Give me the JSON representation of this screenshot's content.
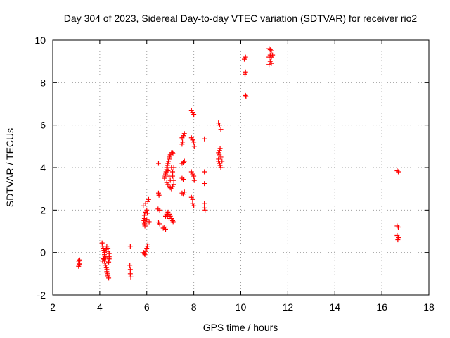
{
  "chart_data": {
    "type": "scatter",
    "title": "Day 304 of 2023, Sidereal Day-to-day VTEC variation (SDTVAR) for receiver rio2",
    "xlabel": "GPS time / hours",
    "ylabel": "SDTVAR / TECUs",
    "xlim": [
      2,
      18
    ],
    "ylim": [
      -2,
      10
    ],
    "xticks": [
      2,
      4,
      6,
      8,
      10,
      12,
      14,
      16,
      18
    ],
    "yticks": [
      -2,
      0,
      2,
      4,
      6,
      8,
      10
    ],
    "xtick_labels": [
      "2",
      "4",
      "6",
      "8",
      "10",
      "12",
      "14",
      "16",
      "18"
    ],
    "ytick_labels": [
      "-2",
      "0",
      "2",
      "4",
      "6",
      "8",
      "10"
    ],
    "grid": true,
    "marker": "+",
    "color": "#ff0000",
    "series": [
      {
        "name": "rio2",
        "points": [
          [
            3.1,
            -0.4
          ],
          [
            3.12,
            -0.5
          ],
          [
            3.15,
            -0.55
          ],
          [
            3.1,
            -0.65
          ],
          [
            3.15,
            -0.35
          ],
          [
            4.1,
            0.45
          ],
          [
            4.12,
            0.3
          ],
          [
            4.15,
            0.2
          ],
          [
            4.18,
            0.1
          ],
          [
            4.2,
            0.0
          ],
          [
            4.2,
            -0.1
          ],
          [
            4.22,
            -0.2
          ],
          [
            4.18,
            -0.3
          ],
          [
            4.2,
            -0.4
          ],
          [
            4.22,
            -0.5
          ],
          [
            4.25,
            -0.6
          ],
          [
            4.28,
            -0.7
          ],
          [
            4.3,
            -0.8
          ],
          [
            4.3,
            -0.9
          ],
          [
            4.32,
            -1.0
          ],
          [
            4.35,
            -1.1
          ],
          [
            4.38,
            -1.2
          ],
          [
            4.3,
            0.3
          ],
          [
            4.35,
            0.2
          ],
          [
            4.35,
            0.05
          ],
          [
            4.4,
            -0.05
          ],
          [
            4.4,
            -0.2
          ],
          [
            4.4,
            -0.3
          ],
          [
            4.38,
            -0.45
          ],
          [
            4.15,
            -0.3
          ],
          [
            4.12,
            -0.4
          ],
          [
            4.28,
            0.15
          ],
          [
            4.25,
            -0.25
          ],
          [
            5.3,
            0.3
          ],
          [
            5.28,
            -0.6
          ],
          [
            5.3,
            -0.8
          ],
          [
            5.3,
            -1.0
          ],
          [
            5.32,
            -1.15
          ],
          [
            5.85,
            1.4
          ],
          [
            5.88,
            1.5
          ],
          [
            5.9,
            1.6
          ],
          [
            5.9,
            1.35
          ],
          [
            5.92,
            1.25
          ],
          [
            5.95,
            1.45
          ],
          [
            6.0,
            1.55
          ],
          [
            6.05,
            1.3
          ],
          [
            5.85,
            2.2
          ],
          [
            5.95,
            2.3
          ],
          [
            6.0,
            2.0
          ],
          [
            6.02,
            1.85
          ],
          [
            6.05,
            2.4
          ],
          [
            6.08,
            2.5
          ],
          [
            5.95,
            1.9
          ],
          [
            5.9,
            1.75
          ],
          [
            5.88,
            0.0
          ],
          [
            5.9,
            -0.05
          ],
          [
            5.95,
            0.05
          ],
          [
            6.0,
            0.2
          ],
          [
            6.02,
            0.3
          ],
          [
            6.05,
            0.4
          ],
          [
            5.92,
            -0.1
          ],
          [
            6.1,
            1.45
          ],
          [
            6.5,
            4.2
          ],
          [
            6.5,
            2.8
          ],
          [
            6.52,
            2.7
          ],
          [
            6.55,
            2.0
          ],
          [
            6.5,
            1.4
          ],
          [
            6.55,
            1.35
          ],
          [
            6.48,
            2.05
          ],
          [
            6.7,
            1.15
          ],
          [
            6.75,
            1.2
          ],
          [
            6.8,
            1.1
          ],
          [
            6.8,
            1.7
          ],
          [
            6.85,
            1.8
          ],
          [
            6.9,
            1.9
          ],
          [
            6.95,
            1.8
          ],
          [
            7.0,
            1.7
          ],
          [
            7.05,
            1.6
          ],
          [
            7.1,
            1.5
          ],
          [
            7.12,
            1.45
          ],
          [
            6.88,
            1.75
          ],
          [
            6.95,
            1.6
          ],
          [
            6.75,
            3.5
          ],
          [
            6.78,
            3.6
          ],
          [
            6.8,
            3.7
          ],
          [
            6.82,
            3.8
          ],
          [
            6.85,
            3.9
          ],
          [
            6.85,
            4.0
          ],
          [
            6.88,
            4.1
          ],
          [
            6.9,
            4.2
          ],
          [
            6.92,
            4.3
          ],
          [
            6.95,
            4.4
          ],
          [
            6.98,
            4.5
          ],
          [
            7.0,
            4.6
          ],
          [
            7.05,
            4.7
          ],
          [
            7.1,
            4.7
          ],
          [
            7.15,
            4.65
          ],
          [
            6.85,
            3.3
          ],
          [
            6.9,
            3.2
          ],
          [
            6.95,
            3.1
          ],
          [
            7.0,
            3.05
          ],
          [
            7.05,
            3.0
          ],
          [
            7.1,
            3.1
          ],
          [
            7.15,
            3.2
          ],
          [
            7.15,
            3.4
          ],
          [
            7.1,
            3.6
          ],
          [
            7.1,
            3.8
          ],
          [
            7.05,
            4.0
          ],
          [
            7.15,
            4.0
          ],
          [
            7.0,
            3.4
          ],
          [
            6.95,
            3.6
          ],
          [
            6.9,
            3.85
          ],
          [
            7.5,
            5.1
          ],
          [
            7.52,
            5.2
          ],
          [
            7.5,
            5.4
          ],
          [
            7.55,
            5.5
          ],
          [
            7.6,
            5.6
          ],
          [
            7.5,
            4.2
          ],
          [
            7.55,
            4.25
          ],
          [
            7.6,
            4.3
          ],
          [
            7.5,
            3.5
          ],
          [
            7.55,
            3.45
          ],
          [
            7.5,
            2.8
          ],
          [
            7.55,
            2.75
          ],
          [
            7.6,
            2.85
          ],
          [
            7.9,
            6.7
          ],
          [
            7.95,
            6.6
          ],
          [
            8.0,
            6.5
          ],
          [
            7.9,
            5.4
          ],
          [
            7.95,
            5.3
          ],
          [
            8.0,
            5.2
          ],
          [
            8.02,
            5.0
          ],
          [
            7.9,
            3.8
          ],
          [
            7.95,
            3.7
          ],
          [
            8.0,
            3.6
          ],
          [
            8.02,
            3.4
          ],
          [
            7.95,
            2.5
          ],
          [
            7.95,
            2.3
          ],
          [
            8.0,
            2.2
          ],
          [
            7.9,
            2.6
          ],
          [
            8.45,
            5.35
          ],
          [
            8.45,
            3.8
          ],
          [
            8.45,
            3.25
          ],
          [
            8.45,
            2.3
          ],
          [
            8.45,
            2.1
          ],
          [
            8.48,
            2.0
          ],
          [
            9.05,
            6.1
          ],
          [
            9.1,
            6.0
          ],
          [
            9.15,
            5.8
          ],
          [
            9.05,
            4.7
          ],
          [
            9.1,
            4.8
          ],
          [
            9.12,
            4.9
          ],
          [
            9.15,
            4.5
          ],
          [
            9.05,
            4.4
          ],
          [
            9.05,
            4.3
          ],
          [
            9.1,
            4.2
          ],
          [
            9.12,
            4.1
          ],
          [
            9.15,
            4.0
          ],
          [
            9.08,
            4.6
          ],
          [
            9.2,
            4.3
          ],
          [
            10.15,
            9.1
          ],
          [
            10.2,
            9.2
          ],
          [
            10.2,
            8.5
          ],
          [
            10.18,
            8.4
          ],
          [
            10.2,
            7.4
          ],
          [
            10.22,
            7.35
          ],
          [
            11.2,
            9.6
          ],
          [
            11.25,
            9.55
          ],
          [
            11.3,
            9.5
          ],
          [
            11.25,
            9.3
          ],
          [
            11.3,
            9.2
          ],
          [
            11.35,
            9.3
          ],
          [
            11.2,
            9.2
          ],
          [
            11.25,
            9.0
          ],
          [
            11.3,
            8.9
          ],
          [
            11.2,
            8.85
          ],
          [
            16.65,
            3.85
          ],
          [
            16.7,
            3.8
          ],
          [
            16.65,
            1.25
          ],
          [
            16.7,
            1.2
          ],
          [
            16.65,
            0.8
          ],
          [
            16.7,
            0.7
          ],
          [
            16.68,
            0.6
          ]
        ]
      }
    ]
  }
}
